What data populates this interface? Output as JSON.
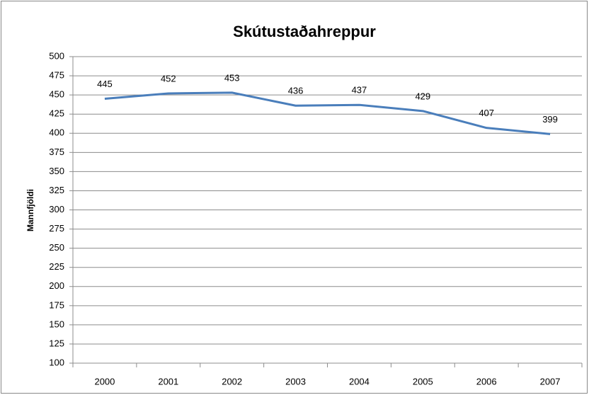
{
  "chart_data": {
    "type": "line",
    "title": "Skútustaðahreppur",
    "y_label": "Mannfjöldi",
    "categories": [
      "2000",
      "2001",
      "2002",
      "2003",
      "2004",
      "2005",
      "2006",
      "2007"
    ],
    "series": [
      {
        "name": "Mannfjöldi",
        "color": "#4a7ebb",
        "values": [
          445,
          452,
          453,
          436,
          437,
          429,
          407,
          399
        ]
      }
    ],
    "ylim": [
      100,
      500
    ],
    "yticks": [
      100,
      125,
      150,
      175,
      200,
      225,
      250,
      275,
      300,
      325,
      350,
      375,
      400,
      425,
      450,
      475,
      500
    ],
    "grid": true
  }
}
